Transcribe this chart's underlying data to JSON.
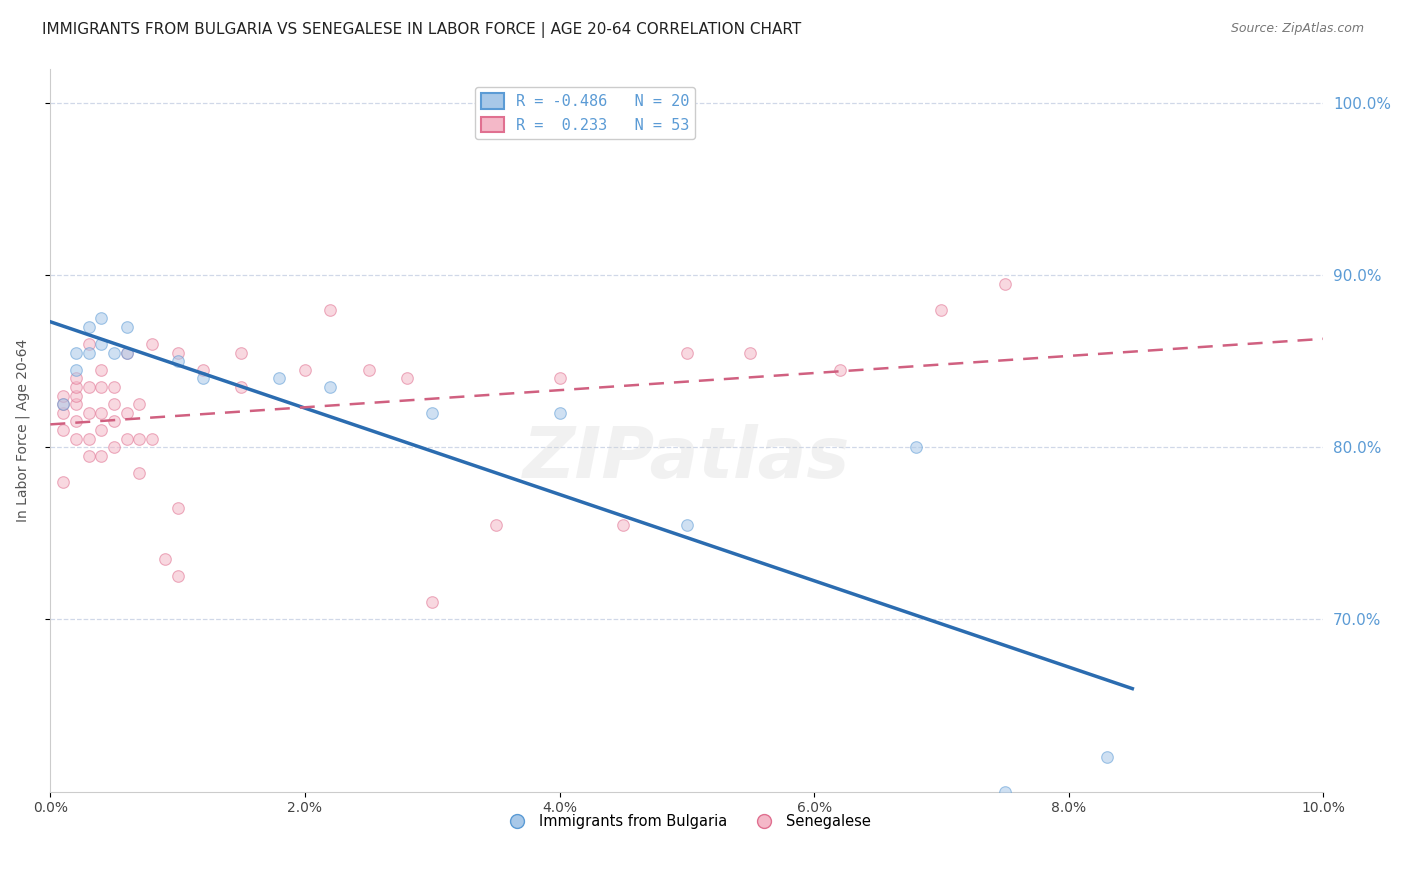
{
  "title": "IMMIGRANTS FROM BULGARIA VS SENEGALESE IN LABOR FORCE | AGE 20-64 CORRELATION CHART",
  "source": "Source: ZipAtlas.com",
  "ylabel": "In Labor Force | Age 20-64",
  "legend_labels": [
    "Immigrants from Bulgaria",
    "Senegalese"
  ],
  "legend_r": [
    "R = -0.486",
    "R =  0.233"
  ],
  "legend_n": [
    "N = 20",
    "N = 53"
  ],
  "blue_fill": "#a8c8e8",
  "blue_edge": "#5b9bd5",
  "pink_fill": "#f4b8c8",
  "pink_edge": "#e07090",
  "blue_line_color": "#2b6cb0",
  "pink_line_color": "#d06080",
  "axis_color": "#5b9bd5",
  "xlim": [
    0.0,
    0.1
  ],
  "ylim": [
    0.6,
    1.02
  ],
  "yticks_right": [
    0.7,
    0.8,
    0.9,
    1.0
  ],
  "ytick_labels_right": [
    "70.0%",
    "80.0%",
    "90.0%",
    "100.0%"
  ],
  "xticks": [
    0.0,
    0.02,
    0.04,
    0.06,
    0.08,
    0.1
  ],
  "xtick_labels": [
    "0.0%",
    "2.0%",
    "4.0%",
    "6.0%",
    "8.0%",
    "10.0%"
  ],
  "blue_x": [
    0.001,
    0.002,
    0.002,
    0.003,
    0.003,
    0.004,
    0.004,
    0.005,
    0.006,
    0.006,
    0.01,
    0.012,
    0.018,
    0.022,
    0.03,
    0.04,
    0.05,
    0.068,
    0.075,
    0.083
  ],
  "blue_y": [
    0.825,
    0.845,
    0.855,
    0.855,
    0.87,
    0.86,
    0.875,
    0.855,
    0.855,
    0.87,
    0.85,
    0.84,
    0.84,
    0.835,
    0.82,
    0.82,
    0.755,
    0.8,
    0.6,
    0.62
  ],
  "pink_x": [
    0.001,
    0.001,
    0.001,
    0.001,
    0.001,
    0.002,
    0.002,
    0.002,
    0.002,
    0.002,
    0.002,
    0.003,
    0.003,
    0.003,
    0.003,
    0.003,
    0.004,
    0.004,
    0.004,
    0.004,
    0.004,
    0.005,
    0.005,
    0.005,
    0.005,
    0.006,
    0.006,
    0.006,
    0.007,
    0.007,
    0.007,
    0.008,
    0.008,
    0.009,
    0.01,
    0.01,
    0.01,
    0.012,
    0.015,
    0.015,
    0.02,
    0.022,
    0.025,
    0.028,
    0.03,
    0.035,
    0.04,
    0.045,
    0.05,
    0.055,
    0.062,
    0.07,
    0.075
  ],
  "pink_y": [
    0.81,
    0.82,
    0.825,
    0.83,
    0.78,
    0.805,
    0.815,
    0.825,
    0.83,
    0.835,
    0.84,
    0.795,
    0.805,
    0.82,
    0.835,
    0.86,
    0.795,
    0.81,
    0.82,
    0.835,
    0.845,
    0.8,
    0.815,
    0.825,
    0.835,
    0.805,
    0.82,
    0.855,
    0.785,
    0.805,
    0.825,
    0.805,
    0.86,
    0.735,
    0.725,
    0.765,
    0.855,
    0.845,
    0.835,
    0.855,
    0.845,
    0.88,
    0.845,
    0.84,
    0.71,
    0.755,
    0.84,
    0.755,
    0.855,
    0.855,
    0.845,
    0.88,
    0.895
  ],
  "watermark": "ZIPatlas",
  "title_fontsize": 11,
  "source_fontsize": 9,
  "axis_label_fontsize": 10,
  "tick_label_fontsize": 10,
  "dot_size": 70,
  "dot_alpha": 0.55,
  "grid_color": "#d0d8e8",
  "legend_fontsize": 11
}
